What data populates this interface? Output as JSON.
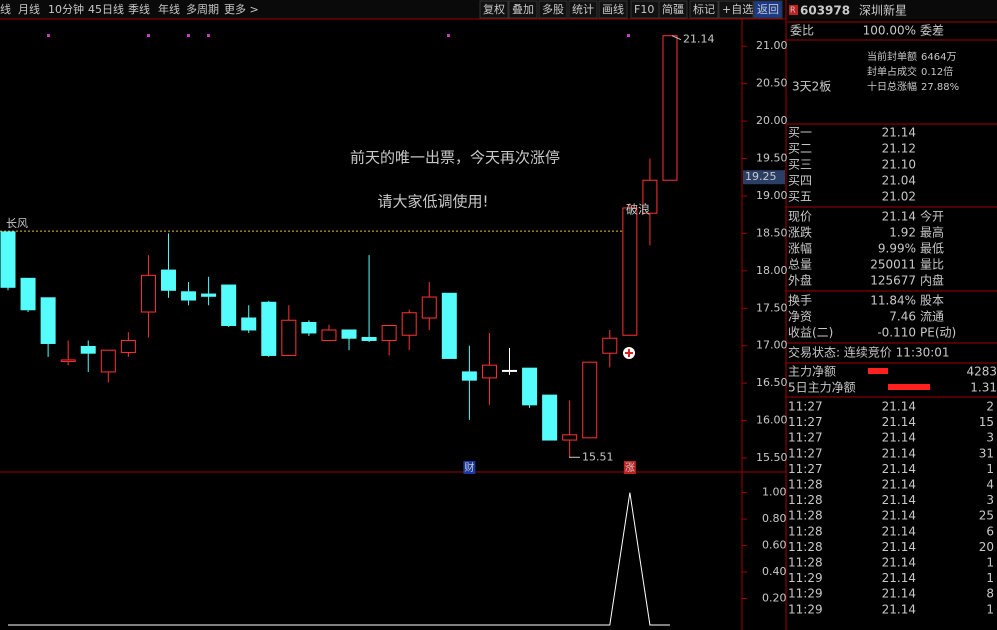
{
  "toolbar": {
    "left": [
      "线",
      "月线",
      "10分钟",
      "45日线",
      "季线",
      "年线",
      "多周期",
      "更多 >"
    ],
    "right": [
      "复权",
      "叠加",
      "多股",
      "统计",
      "画线",
      "F10",
      "简疆",
      "标记",
      "+自选",
      "返回"
    ]
  },
  "chart_data": [
    {
      "type": "candlestick",
      "ylim": [
        15.34,
        21.35
      ],
      "yticks": [
        {
          "value": 21,
          "label": "21.00"
        },
        {
          "value": 20.5,
          "label": "20.50"
        },
        {
          "value": 20,
          "label": "20.00"
        },
        {
          "value": 19.5,
          "label": "19.50"
        },
        {
          "value": 19,
          "label": "19.00"
        },
        {
          "value": 18.5,
          "label": "18.50"
        },
        {
          "value": 18,
          "label": "18.00"
        },
        {
          "value": 17.5,
          "label": "17.50"
        },
        {
          "value": 17,
          "label": "17.00"
        },
        {
          "value": 16.5,
          "label": "16.50"
        },
        {
          "value": 16,
          "label": "16.00"
        },
        {
          "value": 15.5,
          "label": "15.50"
        }
      ],
      "up_color": "#ff3232",
      "down_color": "#54fcfc",
      "open": [
        18.52,
        17.9,
        17.64,
        16.79,
        16.99,
        16.65,
        16.91,
        17.45,
        18.01,
        17.72,
        17.69,
        17.81,
        17.37,
        17.58,
        16.87,
        17.31,
        17.07,
        17.21,
        17.11,
        17.07,
        17.14,
        17.37,
        17.7,
        16.65,
        16.57,
        16.67,
        16.7,
        16.34,
        15.74,
        15.77,
        16.9,
        17.14,
        18.77,
        19.21
      ],
      "close": [
        17.78,
        17.48,
        17.03,
        16.81,
        16.9,
        16.94,
        17.07,
        17.94,
        17.74,
        17.61,
        17.66,
        17.27,
        17.21,
        16.87,
        17.34,
        17.17,
        17.21,
        17.1,
        17.07,
        17.27,
        17.44,
        17.65,
        16.83,
        16.54,
        16.74,
        16.67,
        16.21,
        15.74,
        15.81,
        16.78,
        17.1,
        18.84,
        19.21,
        21.14
      ],
      "high": [
        18.52,
        17.9,
        17.64,
        17.07,
        17.07,
        16.94,
        17.18,
        18.21,
        18.5,
        17.85,
        17.92,
        17.81,
        17.54,
        17.6,
        17.54,
        17.34,
        17.28,
        17.21,
        18.21,
        17.27,
        17.48,
        17.85,
        17.7,
        17.0,
        17.17,
        16.97,
        16.7,
        16.34,
        16.27,
        16.78,
        17.21,
        18.9,
        19.5,
        21.14
      ],
      "low": [
        17.74,
        17.45,
        16.85,
        16.74,
        16.65,
        16.51,
        16.85,
        17.11,
        17.64,
        17.54,
        17.54,
        17.25,
        17.17,
        16.85,
        16.87,
        17.13,
        17.07,
        16.94,
        17.05,
        16.87,
        16.94,
        17.21,
        16.83,
        16.01,
        16.21,
        16.61,
        16.17,
        15.74,
        15.51,
        15.77,
        16.71,
        17.14,
        18.34,
        19.21
      ],
      "events": [
        null,
        null,
        null,
        null,
        null,
        null,
        null,
        null,
        null,
        null,
        null,
        null,
        null,
        null,
        null,
        null,
        null,
        null,
        null,
        null,
        null,
        null,
        null,
        "财",
        null,
        null,
        null,
        null,
        null,
        null,
        null,
        "涨",
        null,
        null
      ],
      "reference_line": {
        "value": 18.53,
        "label": "长风"
      },
      "extreme_labels": [
        {
          "value": 21.14,
          "label": "21.14"
        },
        {
          "value": 15.51,
          "label": "15.51"
        }
      ],
      "cursor_price": {
        "value": 19.25,
        "label": "19.25"
      },
      "annotations": [
        "前天的唯一出票，今天再次涨停",
        "请大家低调使用!",
        "破浪"
      ]
    },
    {
      "type": "line",
      "color": "#ffffff",
      "ylim": [
        0,
        1.11
      ],
      "yticks": [
        {
          "value": 1,
          "label": "1.00"
        },
        {
          "value": 0.8,
          "label": "0.80"
        },
        {
          "value": 0.6,
          "label": "0.60"
        },
        {
          "value": 0.4,
          "label": "0.40"
        },
        {
          "value": 0.2,
          "label": "0.20"
        }
      ],
      "values": [
        0,
        0,
        0,
        0,
        0,
        0,
        0,
        0,
        0,
        0,
        0,
        0,
        0,
        0,
        0,
        0,
        0,
        0,
        0,
        0,
        0,
        0,
        0,
        0,
        0,
        0,
        0,
        0,
        0,
        0,
        0,
        1,
        0,
        0
      ]
    }
  ],
  "quote_panel": {
    "code_tag": "R",
    "code": "603978",
    "name": "深圳新星",
    "ratio": [
      "委比",
      "100.00%",
      "委差"
    ],
    "seal": [
      [
        "当前封单额",
        "6464万"
      ],
      [
        "封单占成交",
        "0.12倍"
      ],
      [
        "十日总涨幅",
        "27.88%"
      ]
    ],
    "board": "3天2板",
    "bids": [
      [
        "买一",
        "21.14"
      ],
      [
        "买二",
        "21.12"
      ],
      [
        "买三",
        "21.10"
      ],
      [
        "买四",
        "21.04"
      ],
      [
        "买五",
        "21.02"
      ]
    ],
    "stats": [
      [
        "现价",
        "21.14",
        "今开"
      ],
      [
        "涨跌",
        "1.92",
        "最高"
      ],
      [
        "涨幅",
        "9.99%",
        "最低"
      ],
      [
        "总量",
        "250011",
        "量比"
      ],
      [
        "外盘",
        "125677",
        "内盘"
      ]
    ],
    "stats2": [
      [
        "换手",
        "11.84%",
        "股本"
      ],
      [
        "净资",
        "7.46",
        "流通"
      ],
      [
        "收益(二)",
        "-0.110",
        "PE(动)"
      ]
    ],
    "status": "交易状态: 连续竞价 11:30:01",
    "flow": [
      [
        "主力净额",
        "4283"
      ],
      [
        "5日主力净额",
        "1.31"
      ]
    ],
    "trades": [
      [
        "11:27",
        "21.14",
        "2"
      ],
      [
        "11:27",
        "21.14",
        "15"
      ],
      [
        "11:27",
        "21.14",
        "3"
      ],
      [
        "11:27",
        "21.14",
        "31"
      ],
      [
        "11:27",
        "21.14",
        "1"
      ],
      [
        "11:28",
        "21.14",
        "4"
      ],
      [
        "11:28",
        "21.14",
        "3"
      ],
      [
        "11:28",
        "21.14",
        "25"
      ],
      [
        "11:28",
        "21.14",
        "6"
      ],
      [
        "11:28",
        "21.14",
        "20"
      ],
      [
        "11:28",
        "21.14",
        "1"
      ],
      [
        "11:29",
        "21.14",
        "1"
      ],
      [
        "11:29",
        "21.14",
        "8"
      ],
      [
        "11:29",
        "21.14",
        "1"
      ]
    ]
  }
}
